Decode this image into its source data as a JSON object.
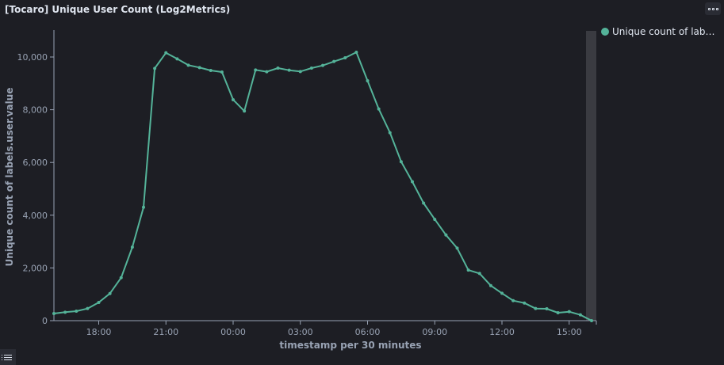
{
  "panel": {
    "title": "[Tocaro] Unique User Count (Log2Metrics)",
    "options_icon": "ellipsis-icon",
    "legend_toggle_icon": "list-icon"
  },
  "legend": {
    "label": "Unique count of labels.user.value",
    "color": "#54b399",
    "position": "right"
  },
  "chart_data": {
    "type": "line",
    "title": "",
    "xlabel": "timestamp per 30 minutes",
    "ylabel": "Unique count of labels.user.value",
    "ylim": [
      0,
      10000
    ],
    "yticks": [
      "0",
      "2,000",
      "4,000",
      "6,000",
      "8,000",
      "10,000"
    ],
    "xticks": [
      "18:00",
      "21:00",
      "00:00",
      "03:00",
      "06:00",
      "09:00",
      "12:00",
      "15:00"
    ],
    "x_start_label": "16:00",
    "x_interval_minutes": 30,
    "grid": false,
    "series": [
      {
        "name": "Unique count of labels.user.value",
        "color": "#54b399",
        "values": [
          270,
          320,
          360,
          460,
          690,
          1030,
          1630,
          2790,
          4300,
          9570,
          10160,
          9930,
          9690,
          9600,
          9490,
          9430,
          8380,
          7950,
          9510,
          9440,
          9580,
          9500,
          9450,
          9580,
          9680,
          9830,
          9970,
          10180,
          9100,
          8030,
          7130,
          6030,
          5270,
          4460,
          3840,
          3250,
          2750,
          1920,
          1790,
          1330,
          1040,
          760,
          670,
          460,
          450,
          300,
          340,
          220,
          0
        ]
      }
    ]
  }
}
